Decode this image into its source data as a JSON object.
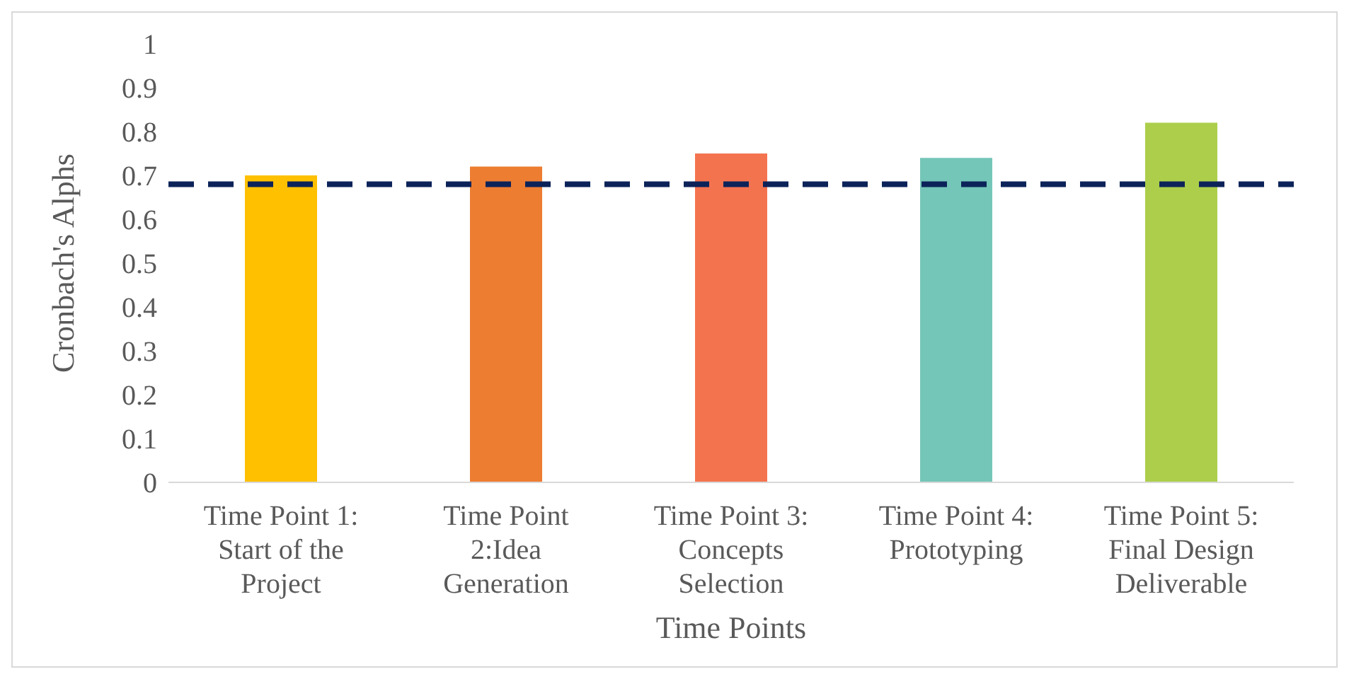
{
  "chart_data": {
    "type": "bar",
    "xlabel": "Time Points",
    "ylabel": "Cronbach's Alphs",
    "categories": [
      "Time Point 1: Start of the Project",
      "Time Point 2:Idea Generation",
      "Time Point 3: Concepts Selection",
      "Time Point 4: Prototyping",
      "Time Point 5: Final Design Deliverable"
    ],
    "values": [
      0.7,
      0.72,
      0.75,
      0.74,
      0.82
    ],
    "colors": [
      "#ffc000",
      "#ed7d31",
      "#f4734f",
      "#74c6b8",
      "#acce4b"
    ],
    "ylim": [
      0,
      1
    ],
    "yticks": [
      0,
      0.1,
      0.2,
      0.3,
      0.4,
      0.5,
      0.6,
      0.7,
      0.8,
      0.9,
      1
    ],
    "grid": false,
    "legend": false,
    "ref_lines": [
      {
        "axis": "y",
        "value": 0.68,
        "color": "#0c2359",
        "line_style": "dashed"
      }
    ]
  }
}
